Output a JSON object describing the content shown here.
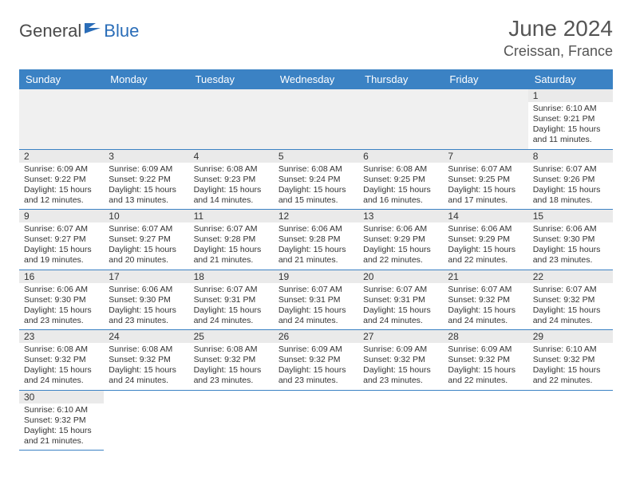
{
  "brand": {
    "text_dark": "General",
    "text_blue": "Blue"
  },
  "title": "June 2024",
  "location": "Creissan, France",
  "colors": {
    "header_bg": "#3b82c4",
    "header_text": "#ffffff",
    "daynum_bg": "#eaeaea",
    "border": "#3b82c4",
    "text": "#333333",
    "title_text": "#555555"
  },
  "weekdays": [
    "Sunday",
    "Monday",
    "Tuesday",
    "Wednesday",
    "Thursday",
    "Friday",
    "Saturday"
  ],
  "days": [
    {
      "n": 1,
      "sr": "6:10 AM",
      "ss": "9:21 PM",
      "dl": "15 hours and 11 minutes."
    },
    {
      "n": 2,
      "sr": "6:09 AM",
      "ss": "9:22 PM",
      "dl": "15 hours and 12 minutes."
    },
    {
      "n": 3,
      "sr": "6:09 AM",
      "ss": "9:22 PM",
      "dl": "15 hours and 13 minutes."
    },
    {
      "n": 4,
      "sr": "6:08 AM",
      "ss": "9:23 PM",
      "dl": "15 hours and 14 minutes."
    },
    {
      "n": 5,
      "sr": "6:08 AM",
      "ss": "9:24 PM",
      "dl": "15 hours and 15 minutes."
    },
    {
      "n": 6,
      "sr": "6:08 AM",
      "ss": "9:25 PM",
      "dl": "15 hours and 16 minutes."
    },
    {
      "n": 7,
      "sr": "6:07 AM",
      "ss": "9:25 PM",
      "dl": "15 hours and 17 minutes."
    },
    {
      "n": 8,
      "sr": "6:07 AM",
      "ss": "9:26 PM",
      "dl": "15 hours and 18 minutes."
    },
    {
      "n": 9,
      "sr": "6:07 AM",
      "ss": "9:27 PM",
      "dl": "15 hours and 19 minutes."
    },
    {
      "n": 10,
      "sr": "6:07 AM",
      "ss": "9:27 PM",
      "dl": "15 hours and 20 minutes."
    },
    {
      "n": 11,
      "sr": "6:07 AM",
      "ss": "9:28 PM",
      "dl": "15 hours and 21 minutes."
    },
    {
      "n": 12,
      "sr": "6:06 AM",
      "ss": "9:28 PM",
      "dl": "15 hours and 21 minutes."
    },
    {
      "n": 13,
      "sr": "6:06 AM",
      "ss": "9:29 PM",
      "dl": "15 hours and 22 minutes."
    },
    {
      "n": 14,
      "sr": "6:06 AM",
      "ss": "9:29 PM",
      "dl": "15 hours and 22 minutes."
    },
    {
      "n": 15,
      "sr": "6:06 AM",
      "ss": "9:30 PM",
      "dl": "15 hours and 23 minutes."
    },
    {
      "n": 16,
      "sr": "6:06 AM",
      "ss": "9:30 PM",
      "dl": "15 hours and 23 minutes."
    },
    {
      "n": 17,
      "sr": "6:06 AM",
      "ss": "9:30 PM",
      "dl": "15 hours and 23 minutes."
    },
    {
      "n": 18,
      "sr": "6:07 AM",
      "ss": "9:31 PM",
      "dl": "15 hours and 24 minutes."
    },
    {
      "n": 19,
      "sr": "6:07 AM",
      "ss": "9:31 PM",
      "dl": "15 hours and 24 minutes."
    },
    {
      "n": 20,
      "sr": "6:07 AM",
      "ss": "9:31 PM",
      "dl": "15 hours and 24 minutes."
    },
    {
      "n": 21,
      "sr": "6:07 AM",
      "ss": "9:32 PM",
      "dl": "15 hours and 24 minutes."
    },
    {
      "n": 22,
      "sr": "6:07 AM",
      "ss": "9:32 PM",
      "dl": "15 hours and 24 minutes."
    },
    {
      "n": 23,
      "sr": "6:08 AM",
      "ss": "9:32 PM",
      "dl": "15 hours and 24 minutes."
    },
    {
      "n": 24,
      "sr": "6:08 AM",
      "ss": "9:32 PM",
      "dl": "15 hours and 24 minutes."
    },
    {
      "n": 25,
      "sr": "6:08 AM",
      "ss": "9:32 PM",
      "dl": "15 hours and 23 minutes."
    },
    {
      "n": 26,
      "sr": "6:09 AM",
      "ss": "9:32 PM",
      "dl": "15 hours and 23 minutes."
    },
    {
      "n": 27,
      "sr": "6:09 AM",
      "ss": "9:32 PM",
      "dl": "15 hours and 23 minutes."
    },
    {
      "n": 28,
      "sr": "6:09 AM",
      "ss": "9:32 PM",
      "dl": "15 hours and 22 minutes."
    },
    {
      "n": 29,
      "sr": "6:10 AM",
      "ss": "9:32 PM",
      "dl": "15 hours and 22 minutes."
    },
    {
      "n": 30,
      "sr": "6:10 AM",
      "ss": "9:32 PM",
      "dl": "15 hours and 21 minutes."
    }
  ],
  "labels": {
    "sunrise": "Sunrise:",
    "sunset": "Sunset:",
    "daylight": "Daylight:"
  },
  "first_day_column": 6
}
